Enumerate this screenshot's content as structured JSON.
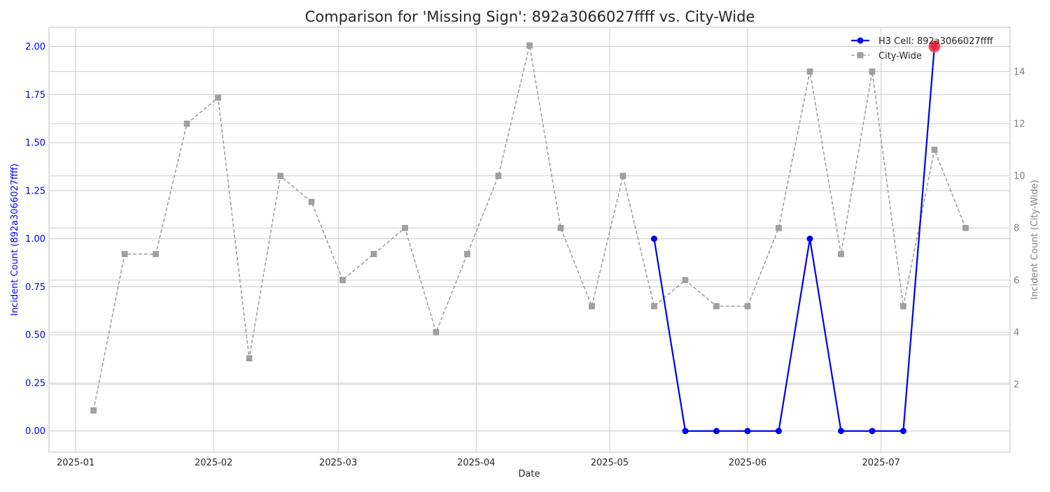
{
  "chart_data": {
    "type": "line",
    "title": "Comparison for 'Missing Sign': 892a3066027ffff vs. City-Wide",
    "xlabel": "Date",
    "ylabel_left": "Incident Count (892a3066027ffff)",
    "ylabel_right": "Incident Count (City-Wide)",
    "xlim": [
      "2024-12-26",
      "2025-07-30"
    ],
    "ylim_left": [
      -0.11,
      2.1
    ],
    "ylim_right": [
      -0.6,
      15.7
    ],
    "x_ticks": [
      {
        "date": "2025-01-01",
        "label": "2025-01"
      },
      {
        "date": "2025-02-01",
        "label": "2025-02"
      },
      {
        "date": "2025-03-01",
        "label": "2025-03"
      },
      {
        "date": "2025-04-01",
        "label": "2025-04"
      },
      {
        "date": "2025-05-01",
        "label": "2025-05"
      },
      {
        "date": "2025-06-01",
        "label": "2025-06"
      },
      {
        "date": "2025-07-01",
        "label": "2025-07"
      }
    ],
    "y_ticks_left": [
      {
        "value": 0,
        "label": "0.00"
      },
      {
        "value": 0.25,
        "label": "0.25"
      },
      {
        "value": 0.5,
        "label": "0.50"
      },
      {
        "value": 0.75,
        "label": "0.75"
      },
      {
        "value": 1.0,
        "label": "1.00"
      },
      {
        "value": 1.25,
        "label": "1.25"
      },
      {
        "value": 1.5,
        "label": "1.50"
      },
      {
        "value": 1.75,
        "label": "1.75"
      },
      {
        "value": 2.0,
        "label": "2.00"
      }
    ],
    "y_ticks_right": [
      {
        "value": 2,
        "label": "2"
      },
      {
        "value": 4,
        "label": "4"
      },
      {
        "value": 6,
        "label": "6"
      },
      {
        "value": 8,
        "label": "8"
      },
      {
        "value": 10,
        "label": "10"
      },
      {
        "value": 12,
        "label": "12"
      },
      {
        "value": 14,
        "label": "14"
      }
    ],
    "grid": true,
    "legend_position": "top-right",
    "series": [
      {
        "name": "H3 Cell: 892a3066027ffff",
        "axis": "left",
        "color": "#0000ee",
        "line_style": "solid",
        "marker": "circle",
        "x": [
          "2025-05-11",
          "2025-05-18",
          "2025-05-25",
          "2025-06-01",
          "2025-06-08",
          "2025-06-15",
          "2025-06-22",
          "2025-06-29",
          "2025-07-06",
          "2025-07-13"
        ],
        "y": [
          1,
          0,
          0,
          0,
          0,
          1,
          0,
          0,
          0,
          2
        ]
      },
      {
        "name": "City-Wide",
        "axis": "right",
        "color": "#a0a0a0",
        "line_style": "dashed",
        "marker": "square",
        "x": [
          "2025-01-05",
          "2025-01-12",
          "2025-01-19",
          "2025-01-26",
          "2025-02-02",
          "2025-02-09",
          "2025-02-16",
          "2025-02-23",
          "2025-03-02",
          "2025-03-09",
          "2025-03-16",
          "2025-03-23",
          "2025-03-30",
          "2025-04-06",
          "2025-04-13",
          "2025-04-20",
          "2025-04-27",
          "2025-05-04",
          "2025-05-11",
          "2025-05-18",
          "2025-05-25",
          "2025-06-01",
          "2025-06-08",
          "2025-06-15",
          "2025-06-22",
          "2025-06-29",
          "2025-07-06",
          "2025-07-13",
          "2025-07-20"
        ],
        "y": [
          1,
          7,
          7,
          12,
          13,
          3,
          10,
          9,
          6,
          7,
          8,
          4,
          7,
          10,
          15,
          8,
          5,
          10,
          5,
          6,
          5,
          5,
          8,
          14,
          7,
          14,
          5,
          11,
          8
        ]
      }
    ],
    "highlight": {
      "date": "2025-07-13",
      "value": 2,
      "axis": "left",
      "color": "#ff2a3a"
    }
  }
}
